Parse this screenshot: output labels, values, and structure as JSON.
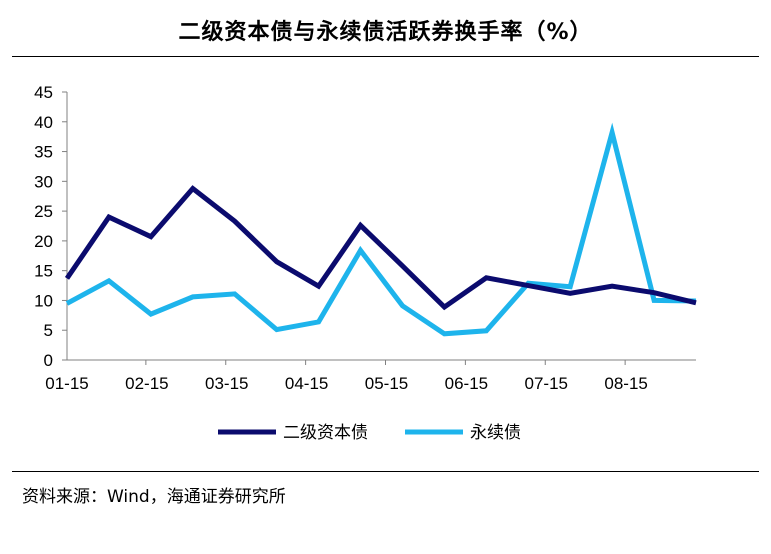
{
  "header": {
    "title": "二级资本债与永续债活跃券换手率（%）"
  },
  "footer": {
    "source": "资料来源：Wind，海通证券研究所"
  },
  "chart_data": {
    "type": "line",
    "title": "二级资本债与永续债活跃券换手率（%）",
    "xlabel": "",
    "ylabel": "",
    "ylim": [
      0,
      45
    ],
    "yticks": [
      0,
      5,
      10,
      15,
      20,
      25,
      30,
      35,
      40,
      45
    ],
    "x_tick_labels": [
      "01-15",
      "02-15",
      "03-15",
      "04-15",
      "05-15",
      "06-15",
      "07-15",
      "08-15"
    ],
    "grid": false,
    "legend_position": "bottom",
    "series": [
      {
        "name": "二级资本债",
        "color": "#0b0b6e",
        "values": [
          13.7,
          24.0,
          20.7,
          28.8,
          23.3,
          16.5,
          12.4,
          22.6,
          15.8,
          8.9,
          13.8,
          12.5,
          11.2,
          12.4,
          11.3,
          9.6
        ]
      },
      {
        "name": "永续债",
        "color": "#1eb4ec",
        "values": [
          9.5,
          13.3,
          7.7,
          10.6,
          11.1,
          5.1,
          6.4,
          18.4,
          9.1,
          4.4,
          4.9,
          12.9,
          12.3,
          38.2,
          10.0,
          9.9
        ]
      }
    ]
  }
}
